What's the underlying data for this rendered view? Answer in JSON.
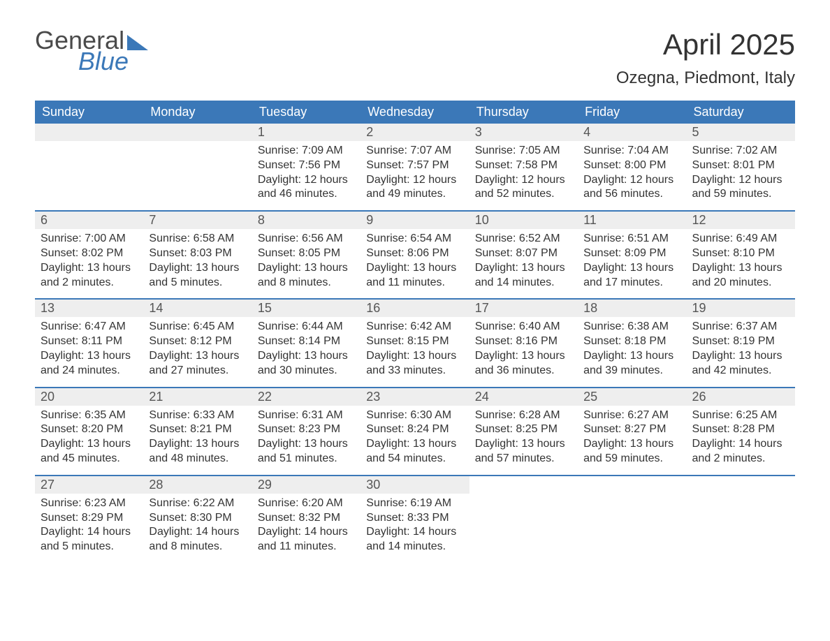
{
  "logo": {
    "text1": "General",
    "text2": "Blue"
  },
  "title": "April 2025",
  "location": "Ozegna, Piedmont, Italy",
  "colors": {
    "header_bg": "#3b78b8",
    "header_text": "#ffffff",
    "daynum_bg": "#eeeeee",
    "text": "#333333",
    "border": "#3b78b8",
    "background": "#ffffff"
  },
  "day_headers": [
    "Sunday",
    "Monday",
    "Tuesday",
    "Wednesday",
    "Thursday",
    "Friday",
    "Saturday"
  ],
  "weeks": [
    [
      null,
      null,
      {
        "n": "1",
        "sunrise": "Sunrise: 7:09 AM",
        "sunset": "Sunset: 7:56 PM",
        "day": "Daylight: 12 hours and 46 minutes."
      },
      {
        "n": "2",
        "sunrise": "Sunrise: 7:07 AM",
        "sunset": "Sunset: 7:57 PM",
        "day": "Daylight: 12 hours and 49 minutes."
      },
      {
        "n": "3",
        "sunrise": "Sunrise: 7:05 AM",
        "sunset": "Sunset: 7:58 PM",
        "day": "Daylight: 12 hours and 52 minutes."
      },
      {
        "n": "4",
        "sunrise": "Sunrise: 7:04 AM",
        "sunset": "Sunset: 8:00 PM",
        "day": "Daylight: 12 hours and 56 minutes."
      },
      {
        "n": "5",
        "sunrise": "Sunrise: 7:02 AM",
        "sunset": "Sunset: 8:01 PM",
        "day": "Daylight: 12 hours and 59 minutes."
      }
    ],
    [
      {
        "n": "6",
        "sunrise": "Sunrise: 7:00 AM",
        "sunset": "Sunset: 8:02 PM",
        "day": "Daylight: 13 hours and 2 minutes."
      },
      {
        "n": "7",
        "sunrise": "Sunrise: 6:58 AM",
        "sunset": "Sunset: 8:03 PM",
        "day": "Daylight: 13 hours and 5 minutes."
      },
      {
        "n": "8",
        "sunrise": "Sunrise: 6:56 AM",
        "sunset": "Sunset: 8:05 PM",
        "day": "Daylight: 13 hours and 8 minutes."
      },
      {
        "n": "9",
        "sunrise": "Sunrise: 6:54 AM",
        "sunset": "Sunset: 8:06 PM",
        "day": "Daylight: 13 hours and 11 minutes."
      },
      {
        "n": "10",
        "sunrise": "Sunrise: 6:52 AM",
        "sunset": "Sunset: 8:07 PM",
        "day": "Daylight: 13 hours and 14 minutes."
      },
      {
        "n": "11",
        "sunrise": "Sunrise: 6:51 AM",
        "sunset": "Sunset: 8:09 PM",
        "day": "Daylight: 13 hours and 17 minutes."
      },
      {
        "n": "12",
        "sunrise": "Sunrise: 6:49 AM",
        "sunset": "Sunset: 8:10 PM",
        "day": "Daylight: 13 hours and 20 minutes."
      }
    ],
    [
      {
        "n": "13",
        "sunrise": "Sunrise: 6:47 AM",
        "sunset": "Sunset: 8:11 PM",
        "day": "Daylight: 13 hours and 24 minutes."
      },
      {
        "n": "14",
        "sunrise": "Sunrise: 6:45 AM",
        "sunset": "Sunset: 8:12 PM",
        "day": "Daylight: 13 hours and 27 minutes."
      },
      {
        "n": "15",
        "sunrise": "Sunrise: 6:44 AM",
        "sunset": "Sunset: 8:14 PM",
        "day": "Daylight: 13 hours and 30 minutes."
      },
      {
        "n": "16",
        "sunrise": "Sunrise: 6:42 AM",
        "sunset": "Sunset: 8:15 PM",
        "day": "Daylight: 13 hours and 33 minutes."
      },
      {
        "n": "17",
        "sunrise": "Sunrise: 6:40 AM",
        "sunset": "Sunset: 8:16 PM",
        "day": "Daylight: 13 hours and 36 minutes."
      },
      {
        "n": "18",
        "sunrise": "Sunrise: 6:38 AM",
        "sunset": "Sunset: 8:18 PM",
        "day": "Daylight: 13 hours and 39 minutes."
      },
      {
        "n": "19",
        "sunrise": "Sunrise: 6:37 AM",
        "sunset": "Sunset: 8:19 PM",
        "day": "Daylight: 13 hours and 42 minutes."
      }
    ],
    [
      {
        "n": "20",
        "sunrise": "Sunrise: 6:35 AM",
        "sunset": "Sunset: 8:20 PM",
        "day": "Daylight: 13 hours and 45 minutes."
      },
      {
        "n": "21",
        "sunrise": "Sunrise: 6:33 AM",
        "sunset": "Sunset: 8:21 PM",
        "day": "Daylight: 13 hours and 48 minutes."
      },
      {
        "n": "22",
        "sunrise": "Sunrise: 6:31 AM",
        "sunset": "Sunset: 8:23 PM",
        "day": "Daylight: 13 hours and 51 minutes."
      },
      {
        "n": "23",
        "sunrise": "Sunrise: 6:30 AM",
        "sunset": "Sunset: 8:24 PM",
        "day": "Daylight: 13 hours and 54 minutes."
      },
      {
        "n": "24",
        "sunrise": "Sunrise: 6:28 AM",
        "sunset": "Sunset: 8:25 PM",
        "day": "Daylight: 13 hours and 57 minutes."
      },
      {
        "n": "25",
        "sunrise": "Sunrise: 6:27 AM",
        "sunset": "Sunset: 8:27 PM",
        "day": "Daylight: 13 hours and 59 minutes."
      },
      {
        "n": "26",
        "sunrise": "Sunrise: 6:25 AM",
        "sunset": "Sunset: 8:28 PM",
        "day": "Daylight: 14 hours and 2 minutes."
      }
    ],
    [
      {
        "n": "27",
        "sunrise": "Sunrise: 6:23 AM",
        "sunset": "Sunset: 8:29 PM",
        "day": "Daylight: 14 hours and 5 minutes."
      },
      {
        "n": "28",
        "sunrise": "Sunrise: 6:22 AM",
        "sunset": "Sunset: 8:30 PM",
        "day": "Daylight: 14 hours and 8 minutes."
      },
      {
        "n": "29",
        "sunrise": "Sunrise: 6:20 AM",
        "sunset": "Sunset: 8:32 PM",
        "day": "Daylight: 14 hours and 11 minutes."
      },
      {
        "n": "30",
        "sunrise": "Sunrise: 6:19 AM",
        "sunset": "Sunset: 8:33 PM",
        "day": "Daylight: 14 hours and 14 minutes."
      },
      null,
      null,
      null
    ]
  ]
}
